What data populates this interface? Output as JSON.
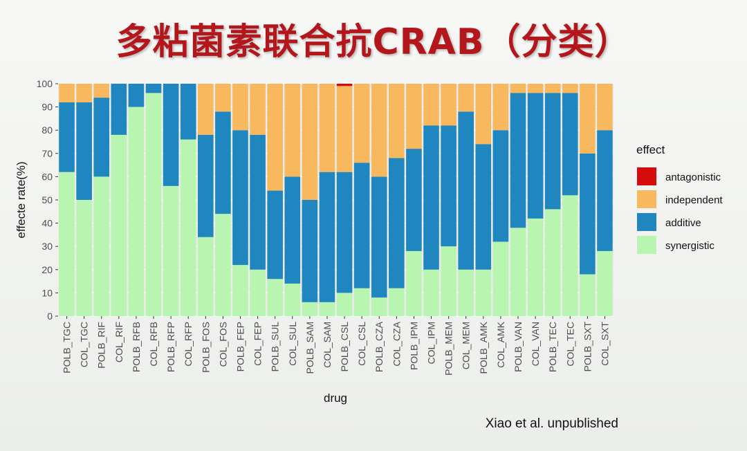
{
  "slide": {
    "title": "多粘菌素联合抗CRAB（分类）",
    "footnote": "Xiao et al. unpublished"
  },
  "chart_data": {
    "type": "bar",
    "stacked": true,
    "xlabel": "drug",
    "ylabel": "effecte rate(%)",
    "ylim": [
      0,
      100
    ],
    "yticks": [
      0,
      10,
      20,
      30,
      40,
      50,
      60,
      70,
      80,
      90,
      100
    ],
    "legend_title": "effect",
    "legend_position": "right",
    "categories": [
      "POLB_TGC",
      "COL_TGC",
      "POLB_RIF",
      "COL_RIF",
      "POLB_RFB",
      "COL_RFB",
      "POLB_RFP",
      "COL_RFP",
      "POLB_FOS",
      "COL_FOS",
      "POLB_FEP",
      "COL_FEP",
      "POLB_SUL",
      "COL_SUL",
      "POLB_SAM",
      "COL_SAM",
      "POLB_CSL",
      "COL_CSL",
      "POLB_CZA",
      "COL_CZA",
      "POLB_IPM",
      "COL_IPM",
      "POLB_MEM",
      "COL_MEM",
      "POLB_AMK",
      "COL_AMK",
      "POLB_VAN",
      "COL_VAN",
      "POLB_TEC",
      "COL_TEC",
      "POLB_SXT",
      "COL_SXT"
    ],
    "series": [
      {
        "name": "synergistic",
        "color": "#b8f5b0",
        "values": [
          62,
          50,
          60,
          78,
          90,
          96,
          56,
          76,
          34,
          44,
          22,
          20,
          16,
          14,
          6,
          6,
          10,
          12,
          8,
          12,
          28,
          20,
          30,
          20,
          20,
          32,
          38,
          42,
          46,
          52,
          18,
          28
        ]
      },
      {
        "name": "additive",
        "color": "#1f86c0",
        "values": [
          30,
          42,
          34,
          22,
          10,
          4,
          44,
          24,
          44,
          44,
          58,
          58,
          38,
          46,
          44,
          56,
          52,
          54,
          52,
          56,
          44,
          62,
          52,
          68,
          54,
          48,
          58,
          54,
          50,
          44,
          52,
          52
        ]
      },
      {
        "name": "independent",
        "color": "#f8b85e",
        "values": [
          8,
          8,
          6,
          0,
          0,
          0,
          0,
          0,
          22,
          12,
          20,
          22,
          46,
          40,
          50,
          38,
          37,
          34,
          40,
          32,
          28,
          18,
          18,
          12,
          26,
          20,
          4,
          4,
          4,
          4,
          30,
          20
        ]
      },
      {
        "name": "antagonistic",
        "color": "#d60c0c",
        "values": [
          0,
          0,
          0,
          0,
          0,
          0,
          0,
          0,
          0,
          0,
          0,
          0,
          0,
          0,
          0,
          0,
          1,
          0,
          0,
          0,
          0,
          0,
          0,
          0,
          0,
          0,
          0,
          0,
          0,
          0,
          0,
          0
        ]
      }
    ],
    "legend_order": [
      "antagonistic",
      "independent",
      "additive",
      "synergistic"
    ]
  }
}
